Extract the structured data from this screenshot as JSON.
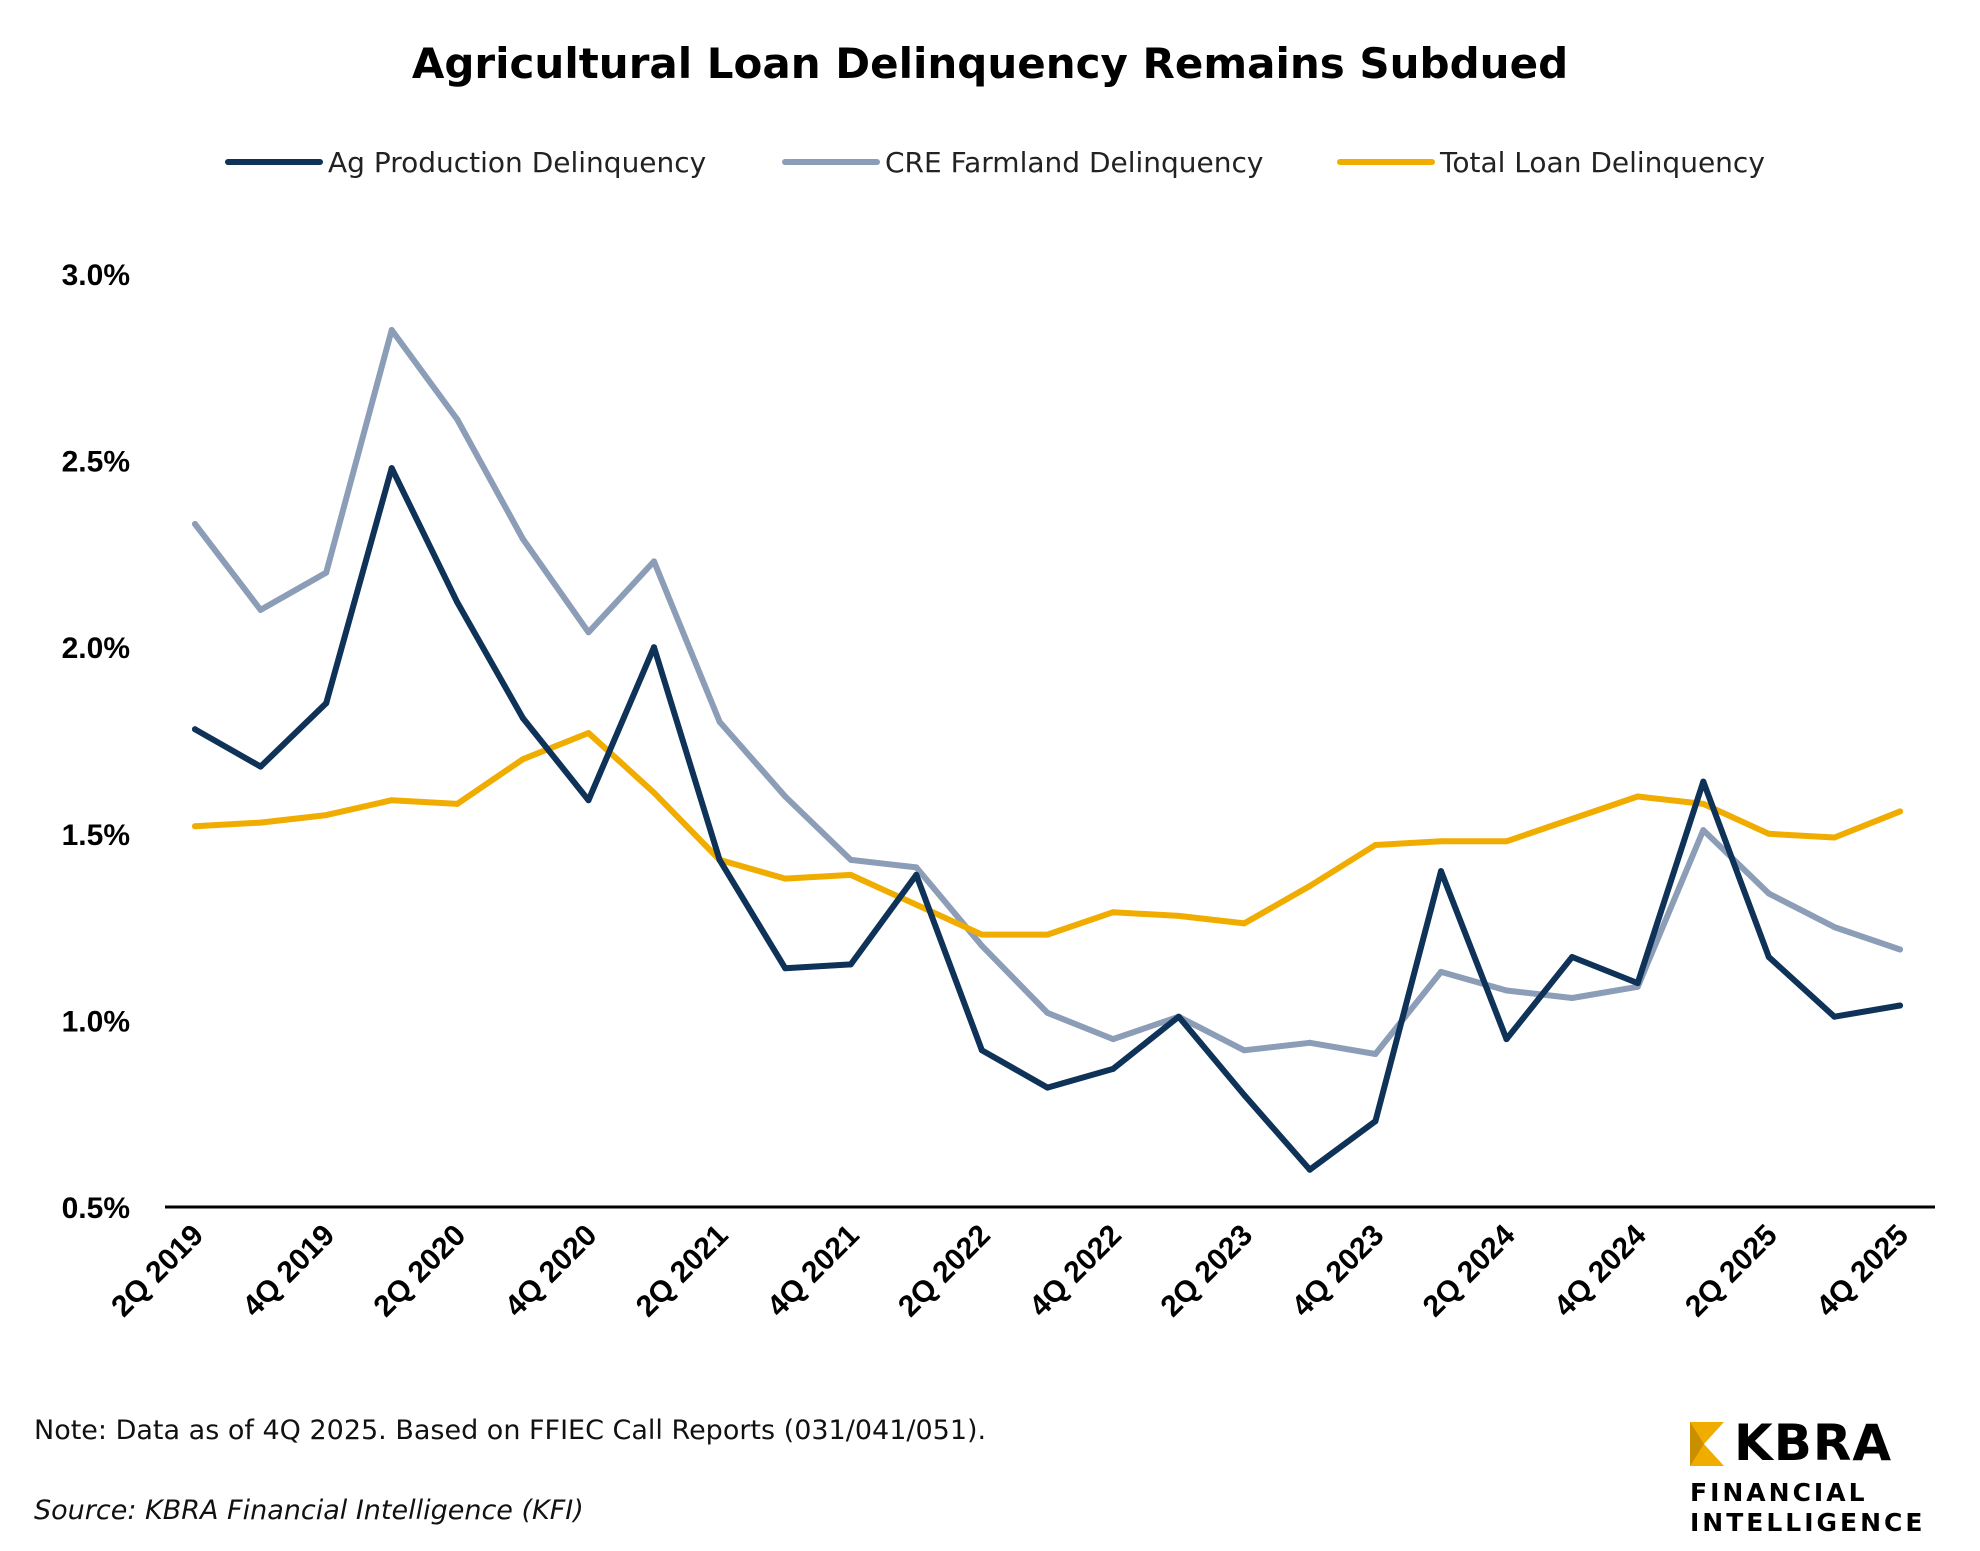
{
  "chart_data": {
    "type": "line",
    "title": "Agricultural Loan Delinquency Remains Subdued",
    "xlabel": "",
    "ylabel": "",
    "ylim": [
      0.5,
      3.0
    ],
    "yticks": [
      "0.5%",
      "1.0%",
      "1.5%",
      "2.0%",
      "2.5%",
      "3.0%"
    ],
    "ytick_values": [
      0.5,
      1.0,
      1.5,
      2.0,
      2.5,
      3.0
    ],
    "x": [
      "2Q 2019",
      "3Q 2019",
      "4Q 2019",
      "1Q 2020",
      "2Q 2020",
      "3Q 2020",
      "4Q 2020",
      "1Q 2021",
      "2Q 2021",
      "3Q 2021",
      "4Q 2021",
      "1Q 2022",
      "2Q 2022",
      "3Q 2022",
      "4Q 2022",
      "1Q 2023",
      "2Q 2023",
      "3Q 2023",
      "4Q 2023",
      "1Q 2024",
      "2Q 2024",
      "3Q 2024",
      "4Q 2024",
      "1Q 2025",
      "2Q 2025",
      "3Q 2025",
      "4Q 2025"
    ],
    "xtick_labels": [
      "2Q 2019",
      "4Q 2019",
      "2Q 2020",
      "4Q 2020",
      "2Q 2021",
      "4Q 2021",
      "2Q 2022",
      "4Q 2022",
      "2Q 2023",
      "4Q 2023",
      "2Q 2024",
      "4Q 2024",
      "2Q 2025",
      "4Q 2025"
    ],
    "legend_position": "top",
    "grid": false,
    "series": [
      {
        "name": "Ag Production Delinquency",
        "color": "#0e3258",
        "values": [
          1.78,
          1.68,
          1.85,
          2.48,
          2.12,
          1.81,
          1.59,
          2.0,
          1.43,
          1.14,
          1.15,
          1.39,
          0.92,
          0.82,
          0.87,
          1.01,
          0.8,
          0.6,
          0.73,
          1.4,
          0.95,
          1.17,
          1.1,
          1.64,
          1.17,
          1.01,
          1.04
        ]
      },
      {
        "name": "CRE Farmland Delinquency",
        "color": "#8c9db7",
        "values": [
          2.33,
          2.1,
          2.2,
          2.85,
          2.61,
          2.29,
          2.04,
          2.23,
          1.8,
          1.6,
          1.43,
          1.41,
          1.2,
          1.02,
          0.95,
          1.01,
          0.92,
          0.94,
          0.91,
          1.13,
          1.08,
          1.06,
          1.09,
          1.51,
          1.34,
          1.25,
          1.19
        ]
      },
      {
        "name": "Total Loan Delinquency",
        "color": "#f0ad00",
        "values": [
          1.52,
          1.53,
          1.55,
          1.59,
          1.58,
          1.7,
          1.77,
          1.61,
          1.43,
          1.38,
          1.39,
          1.31,
          1.23,
          1.23,
          1.29,
          1.28,
          1.26,
          1.36,
          1.47,
          1.48,
          1.48,
          1.54,
          1.6,
          1.58,
          1.5,
          1.49,
          1.56
        ]
      }
    ]
  },
  "footer": {
    "note": "Note: Data as of 4Q 2025. Based on FFIEC Call Reports (031/041/051).",
    "source": "Source: KBRA Financial Intelligence (KFI)"
  },
  "logo": {
    "name": "KBRA",
    "line1": "FINANCIAL",
    "line2": "INTELLIGENCE",
    "color": "#f0ad00"
  }
}
